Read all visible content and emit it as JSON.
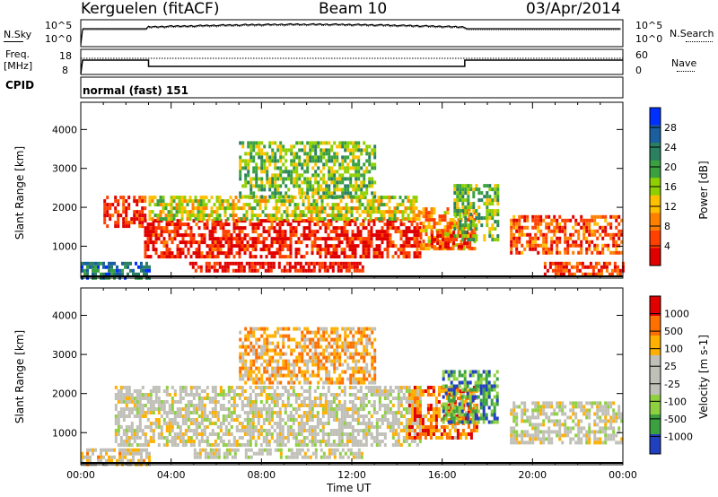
{
  "header": {
    "station": "Kerguelen (fitACF)",
    "beam": "Beam 10",
    "date": "03/Apr/2014"
  },
  "noise_panel": {
    "left_label": "N.Sky",
    "left_ticks": [
      "10^5",
      "10^0"
    ],
    "right_label": "N.Search",
    "right_ticks": [
      "10^5",
      "10^0"
    ]
  },
  "freq_panel": {
    "left_label_1": "Freq.",
    "left_label_2": "[MHz]",
    "left_ticks": [
      "18",
      "8"
    ],
    "right_label": "Nave",
    "right_ticks": [
      "60",
      "0"
    ]
  },
  "cpid_panel": {
    "label": "CPID",
    "value": "normal (fast) 151"
  },
  "chart_data": [
    {
      "type": "heatmap",
      "name": "power",
      "ylabel": "Slant Range [km]",
      "yticks": [
        1000,
        2000,
        3000,
        4000
      ],
      "ylim": [
        180,
        4700
      ],
      "xlim": [
        0,
        24
      ],
      "colorbar": {
        "label": "Power [dB]",
        "ticks": [
          "28",
          "24",
          "20",
          "16",
          "12",
          "8",
          "4"
        ],
        "colors": [
          "#e00000",
          "#ff4000",
          "#ff8000",
          "#ffc000",
          "#8fd000",
          "#3aa040",
          "#2a8060",
          "#1a60a0",
          "#0030ff"
        ]
      },
      "regions": [
        {
          "x0": 0.0,
          "x1": 3.0,
          "r0": 200,
          "r1": 600,
          "level": 0.75
        },
        {
          "x0": 1.0,
          "x1": 2.8,
          "r0": 1500,
          "r1": 2300,
          "level": 0.1
        },
        {
          "x0": 2.8,
          "x1": 15.0,
          "r0": 700,
          "r1": 1700,
          "level": 0.08
        },
        {
          "x0": 4.8,
          "x1": 12.5,
          "r0": 350,
          "r1": 600,
          "level": 0.05
        },
        {
          "x0": 3.0,
          "x1": 15.0,
          "r0": 1700,
          "r1": 2300,
          "level": 0.45
        },
        {
          "x0": 7.0,
          "x1": 13.0,
          "r0": 2300,
          "r1": 3700,
          "level": 0.55
        },
        {
          "x0": 15.0,
          "x1": 17.5,
          "r0": 900,
          "r1": 2000,
          "level": 0.3
        },
        {
          "x0": 15.5,
          "x1": 17.2,
          "r0": 1000,
          "r1": 1400,
          "level": 0.08
        },
        {
          "x0": 16.5,
          "x1": 18.5,
          "r0": 1200,
          "r1": 2600,
          "level": 0.55
        },
        {
          "x0": 19.0,
          "x1": 24.0,
          "r0": 800,
          "r1": 1800,
          "level": 0.2
        },
        {
          "x0": 20.5,
          "x1": 24.0,
          "r0": 250,
          "r1": 600,
          "level": 0.15
        }
      ]
    },
    {
      "type": "heatmap",
      "name": "velocity",
      "ylabel": "Slant Range [km]",
      "yticks": [
        1000,
        2000,
        3000,
        4000
      ],
      "ylim": [
        180,
        4700
      ],
      "xlim": [
        0,
        24
      ],
      "xticks": [
        "00:00",
        "04:00",
        "08:00",
        "12:00",
        "16:00",
        "20:00",
        "00:00"
      ],
      "xlabel": "Time UT",
      "colorbar": {
        "label": "Velocity [m s-1]",
        "ticks": [
          "1000",
          "500",
          "100",
          "25",
          "-25",
          "-100",
          "-500",
          "-1000"
        ],
        "colors": [
          "#2040c0",
          "#3aa040",
          "#8fd040",
          "#c0c0b8",
          "#c0c0b8",
          "#ffb000",
          "#ff7000",
          "#e00000"
        ]
      },
      "regions": [
        {
          "x0": 0.0,
          "x1": 3.0,
          "r0": 200,
          "r1": 600,
          "level": 0.6
        },
        {
          "x0": 1.5,
          "x1": 15.0,
          "r0": 650,
          "r1": 2200,
          "level": 0.5
        },
        {
          "x0": 5.0,
          "x1": 12.5,
          "r0": 350,
          "r1": 600,
          "level": 0.5
        },
        {
          "x0": 7.0,
          "x1": 13.0,
          "r0": 2300,
          "r1": 3700,
          "level": 0.7
        },
        {
          "x0": 14.5,
          "x1": 17.5,
          "r0": 900,
          "r1": 2200,
          "level": 0.78
        },
        {
          "x0": 16.0,
          "x1": 18.5,
          "r0": 1300,
          "r1": 2600,
          "level": 0.2
        },
        {
          "x0": 19.0,
          "x1": 24.0,
          "r0": 700,
          "r1": 1800,
          "level": 0.5
        }
      ]
    }
  ]
}
